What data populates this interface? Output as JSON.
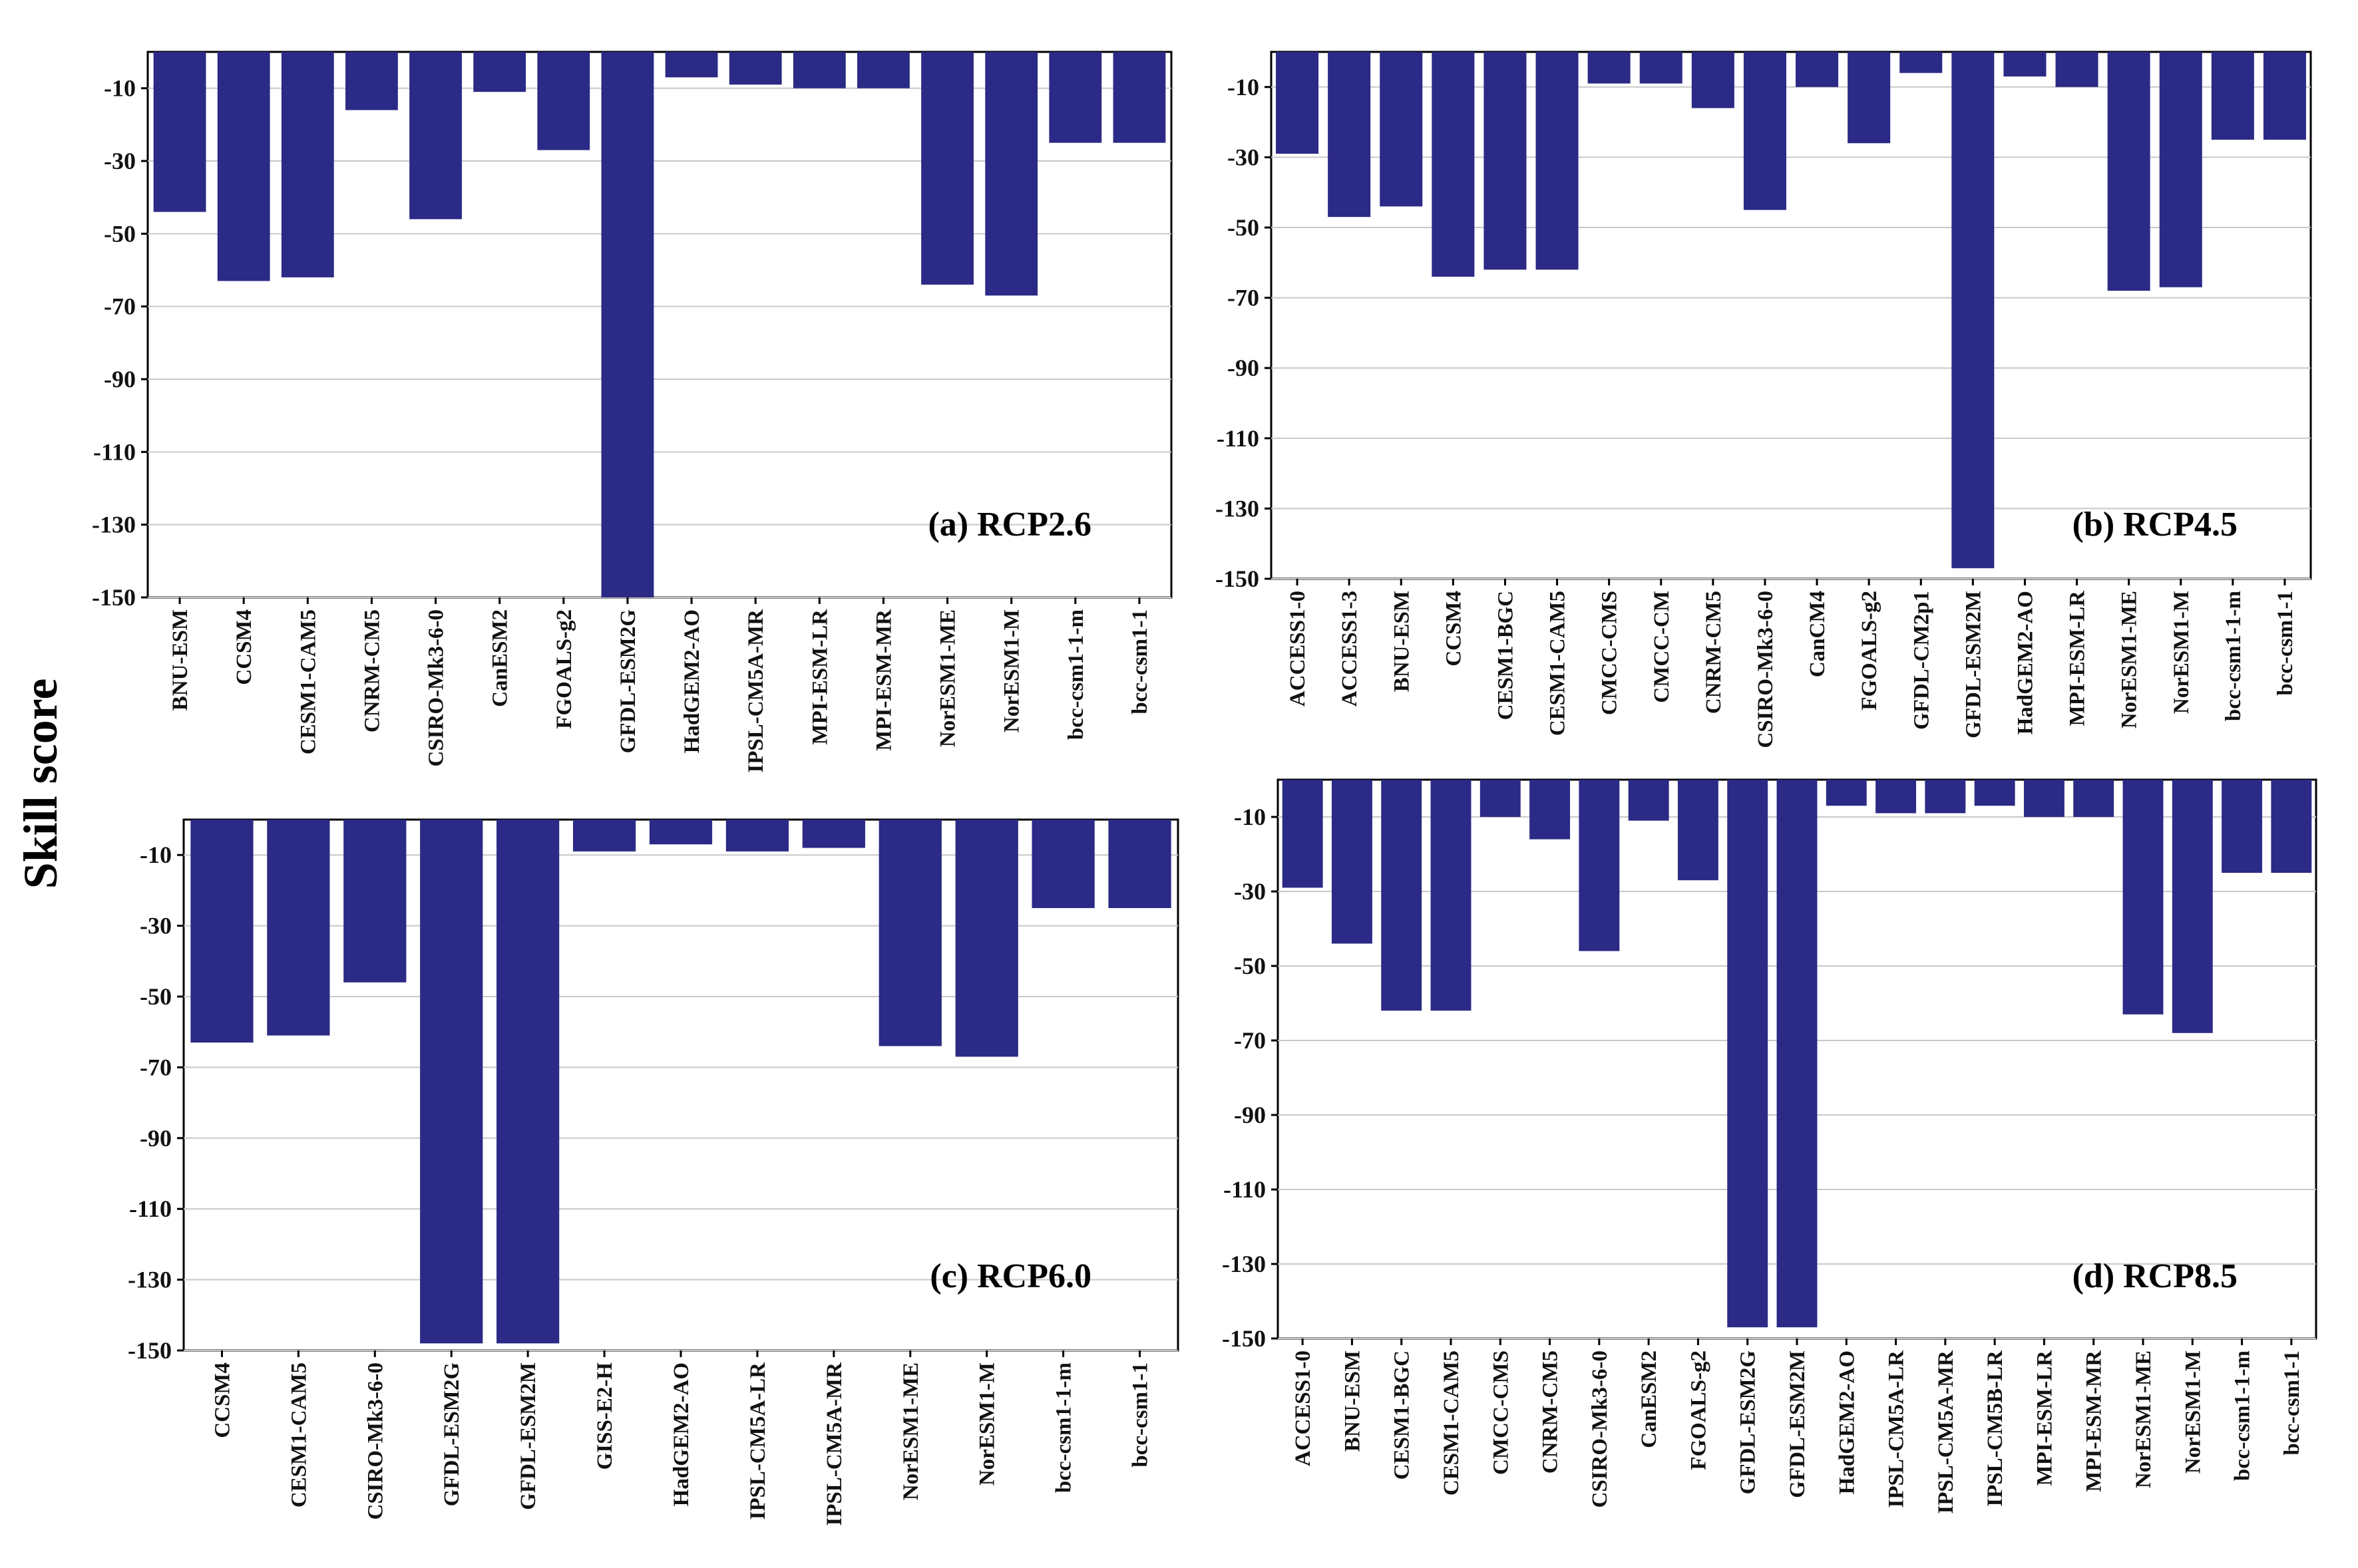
{
  "figure": {
    "ylabel": "Skill score",
    "bar_color": "#2b2a86"
  },
  "chart_data": [
    {
      "type": "bar",
      "panel_label": "(a) RCP2.6",
      "ylabel": "Skill score",
      "ylim": [
        -150,
        0
      ],
      "yticks": [
        -10,
        -30,
        -50,
        -70,
        -90,
        -110,
        -130,
        -150
      ],
      "categories": [
        "BNU-ESM",
        "CCSM4",
        "CESM1-CAM5",
        "CNRM-CM5",
        "CSIRO-Mk3-6-0",
        "CanESM2",
        "FGOALS-g2",
        "GFDL-ESM2G",
        "HadGEM2-AO",
        "IPSL-CM5A-MR",
        "MPI-ESM-LR",
        "MPI-ESM-MR",
        "NorESM1-ME",
        "NorESM1-M",
        "bcc-csm1-1-m",
        "bcc-csm1-1"
      ],
      "values": [
        -44,
        -63,
        -62,
        -16,
        -46,
        -11,
        -27,
        -150,
        -7,
        -9,
        -10,
        -10,
        -64,
        -67,
        -25,
        -25
      ]
    },
    {
      "type": "bar",
      "panel_label": "(b) RCP4.5",
      "ylabel": "Skill score",
      "ylim": [
        -150,
        0
      ],
      "yticks": [
        -10,
        -30,
        -50,
        -70,
        -90,
        -110,
        -130,
        -150
      ],
      "categories": [
        "ACCESS1-0",
        "ACCESS1-3",
        "BNU-ESM",
        "CCSM4",
        "CESM1-BGC",
        "CESM1-CAM5",
        "CMCC-CMS",
        "CMCC-CM",
        "CNRM-CM5",
        "CSIRO-Mk3-6-0",
        "CanCM4",
        "FGOALS-g2",
        "GFDL-CM2p1",
        "GFDL-ESM2M",
        "HadGEM2-AO",
        "MPI-ESM-LR",
        "NorESM1-ME",
        "NorESM1-M",
        "bcc-csm1-1-m",
        "bcc-csm1-1"
      ],
      "values": [
        -29,
        -47,
        -44,
        -64,
        -62,
        -62,
        -9,
        -9,
        -16,
        -45,
        -10,
        -26,
        -6,
        -147,
        -7,
        -10,
        -68,
        -67,
        -25,
        -25
      ]
    },
    {
      "type": "bar",
      "panel_label": "(c) RCP6.0",
      "ylabel": "Skill score",
      "ylim": [
        -150,
        0
      ],
      "yticks": [
        -10,
        -30,
        -50,
        -70,
        -90,
        -110,
        -130,
        -150
      ],
      "categories": [
        "CCSM4",
        "CESM1-CAM5",
        "CSIRO-Mk3-6-0",
        "GFDL-ESM2G",
        "GFDL-ESM2M",
        "GISS-E2-H",
        "HadGEM2-AO",
        "IPSL-CM5A-LR",
        "IPSL-CM5A-MR",
        "NorESM1-ME",
        "NorESM1-M",
        "bcc-csm1-1-m",
        "bcc-csm1-1"
      ],
      "values": [
        -63,
        -61,
        -46,
        -148,
        -148,
        -9,
        -7,
        -9,
        -8,
        -64,
        -67,
        -25,
        -25
      ]
    },
    {
      "type": "bar",
      "panel_label": "(d) RCP8.5",
      "ylabel": "Skill score",
      "ylim": [
        -150,
        0
      ],
      "yticks": [
        -10,
        -30,
        -50,
        -70,
        -90,
        -110,
        -130,
        -150
      ],
      "categories": [
        "ACCESS1-0",
        "BNU-ESM",
        "CESM1-BGC",
        "CESM1-CAM5",
        "CMCC-CMS",
        "CNRM-CM5",
        "CSIRO-Mk3-6-0",
        "CanESM2",
        "FGOALS-g2",
        "GFDL-ESM2G",
        "GFDL-ESM2M",
        "HadGEM2-AO",
        "IPSL-CM5A-LR",
        "IPSL-CM5A-MR",
        "IPSL-CM5B-LR",
        "MPI-ESM-LR",
        "MPI-ESM-MR",
        "NorESM1-ME",
        "NorESM1-M",
        "bcc-csm1-1-m",
        "bcc-csm1-1"
      ],
      "values": [
        -29,
        -44,
        -62,
        -62,
        -10,
        -16,
        -46,
        -11,
        -27,
        -147,
        -147,
        -7,
        -9,
        -9,
        -7,
        -10,
        -10,
        -63,
        -68,
        -25,
        -25
      ]
    }
  ]
}
